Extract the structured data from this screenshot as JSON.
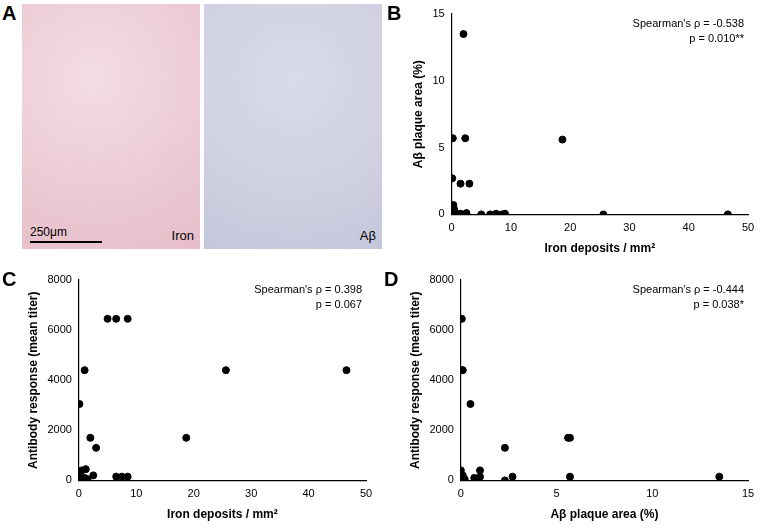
{
  "image_panel": {
    "label": "A",
    "images": [
      {
        "caption": "Iron"
      },
      {
        "caption": "Aβ"
      }
    ],
    "scale_bar": "250μm"
  },
  "chart_data": [
    {
      "type": "scatter",
      "label": "B",
      "x_label": "Iron deposits / mm²",
      "y_label": "Aβ plaque area (%)",
      "annotations": [
        "Spearman's ρ = -0.538",
        "p = 0.010**"
      ],
      "x": [
        0.2,
        0.1,
        0.3,
        0.4,
        0.5,
        0.2,
        0,
        1.5,
        2,
        2.3,
        3,
        1,
        1.5,
        2.5,
        5,
        6.5,
        7.5,
        8.5,
        9,
        18.7,
        25.6,
        46.6
      ],
      "values": [
        5.7,
        2.7,
        0.7,
        0.4,
        0.2,
        0.05,
        0,
        2.3,
        13.5,
        5.7,
        2.3,
        0,
        0.05,
        0.1,
        0,
        0,
        0.05,
        0,
        0.05,
        5.6,
        0,
        0
      ],
      "xlim": [
        0,
        50
      ],
      "xticks": [
        0,
        10,
        20,
        30,
        40,
        50
      ],
      "ylim": [
        0,
        15
      ],
      "yticks": [
        0,
        5,
        10,
        15
      ],
      "color": "#000000",
      "marker": "circle",
      "grid": false
    },
    {
      "type": "scatter",
      "label": "C",
      "x_label": "Iron deposits / mm²",
      "y_label": "Antibody response (mean titer)",
      "annotations": [
        "Spearman's ρ = 0.398",
        "p = 0.067"
      ],
      "x": [
        0.1,
        0.2,
        0.3,
        0.5,
        1,
        1,
        1.2,
        1.5,
        2,
        2.5,
        3,
        5,
        6.5,
        8.5,
        6.5,
        7.5,
        8.5,
        18.7,
        25.6,
        46.6,
        0,
        0.5
      ],
      "values": [
        3050,
        150,
        50,
        400,
        4400,
        100,
        450,
        50,
        1700,
        200,
        1300,
        6450,
        6450,
        6450,
        150,
        150,
        150,
        1700,
        4400,
        4400,
        0,
        100
      ],
      "xlim": [
        0,
        50
      ],
      "xticks": [
        0,
        10,
        20,
        30,
        40,
        50
      ],
      "ylim": [
        0,
        8000
      ],
      "yticks": [
        0,
        2000,
        4000,
        6000,
        8000
      ],
      "color": "#000000",
      "marker": "circle",
      "grid": false
    },
    {
      "type": "scatter",
      "label": "D",
      "x_label": "Aβ plaque area (%)",
      "y_label": "Antibody response (mean titer)",
      "annotations": [
        "Spearman's ρ = -0.444",
        "p = 0.038*"
      ],
      "x": [
        0.05,
        0.05,
        0.1,
        0.5,
        0,
        1,
        0,
        0.2,
        1,
        2.3,
        2.3,
        2.7,
        5.6,
        5.7,
        5.7,
        13.5,
        0,
        0.1,
        0.7
      ],
      "values": [
        6450,
        4400,
        4400,
        3050,
        400,
        400,
        100,
        50,
        150,
        1300,
        0,
        150,
        1700,
        1700,
        150,
        150,
        0,
        200,
        100
      ],
      "xlim": [
        0,
        15
      ],
      "xticks": [
        0,
        5,
        10,
        15
      ],
      "ylim": [
        0,
        8000
      ],
      "yticks": [
        0,
        2000,
        4000,
        6000,
        8000
      ],
      "color": "#000000",
      "marker": "circle",
      "grid": false
    }
  ]
}
